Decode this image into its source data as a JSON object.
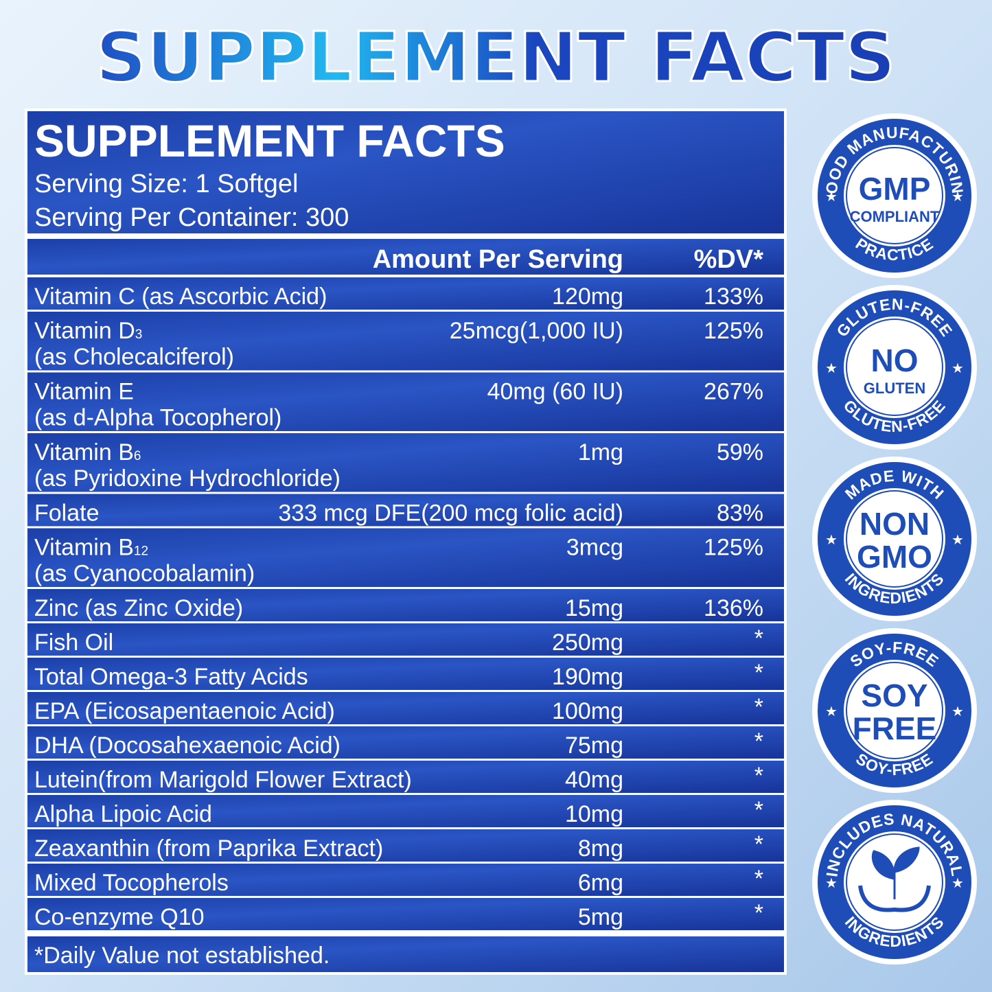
{
  "title": "SUPPLEMENT FACTS",
  "panel": {
    "heading": "SUPPLEMENT FACTS",
    "serving_size": "Serving Size: 1 Softgel",
    "servings_per_container": "Serving Per Container: 300",
    "header": {
      "amount": "Amount Per Serving",
      "dv": "%DV*"
    },
    "rows": [
      {
        "name": "Vitamin C (as Ascorbic Acid)",
        "amount": "120mg",
        "dv": "133%"
      },
      {
        "name": "Vitamin D",
        "subscript": "3",
        "detail": "(as Cholecalciferol)",
        "amount": "25mcg(1,000 IU)",
        "dv": "125%"
      },
      {
        "name": "Vitamin E",
        "detail": "(as d-Alpha Tocopherol)",
        "amount": "40mg (60 IU)",
        "dv": "267%"
      },
      {
        "name": "Vitamin B",
        "subscript": "6",
        "detail": "(as Pyridoxine Hydrochloride)",
        "amount": "1mg",
        "dv": "59%"
      },
      {
        "name": "Folate",
        "amount": "333 mcg DFE(200 mcg folic acid)",
        "dv": "83%"
      },
      {
        "name": "Vitamin B",
        "subscript": "12",
        "detail": "(as Cyanocobalamin)",
        "amount": "3mcg",
        "dv": "125%"
      },
      {
        "name": "Zinc (as Zinc Oxide)",
        "amount": "15mg",
        "dv": "136%"
      },
      {
        "name": "Fish Oil",
        "amount": "250mg",
        "dv": "*"
      },
      {
        "name": "Total Omega-3 Fatty Acids",
        "amount": "190mg",
        "dv": "*"
      },
      {
        "name": "EPA (Eicosapentaenoic Acid)",
        "amount": "100mg",
        "dv": "*"
      },
      {
        "name": "DHA (Docosahexaenoic Acid)",
        "amount": "75mg",
        "dv": "*"
      },
      {
        "name": "Lutein(from Marigold Flower Extract)",
        "amount": "40mg",
        "dv": "*"
      },
      {
        "name": "Alpha Lipoic Acid",
        "amount": "10mg",
        "dv": "*"
      },
      {
        "name": "Zeaxanthin (from Paprika Extract)",
        "amount": "8mg",
        "dv": "*"
      },
      {
        "name": "Mixed Tocopherols",
        "amount": "6mg",
        "dv": "*"
      },
      {
        "name": "Co-enzyme Q10",
        "amount": "5mg",
        "dv": "*"
      }
    ],
    "footnote": "*Daily Value not established."
  },
  "badges": [
    {
      "top": "GOOD MANUFACTURING",
      "center": [
        "GMP",
        "COMPLIANT"
      ],
      "bottom": "PRACTICE"
    },
    {
      "top": "GLUTEN-FREE",
      "center": [
        "NO",
        "GLUTEN"
      ],
      "bottom": "GLUTEN-FREE"
    },
    {
      "top": "MADE WITH",
      "center": [
        "NON",
        "GMO"
      ],
      "bottom": "INGREDIENTS"
    },
    {
      "top": "SOY-FREE",
      "center": [
        "SOY",
        "FREE"
      ],
      "bottom": "SOY-FREE"
    },
    {
      "top": "INCLUDES NATURAL",
      "bottom": "INGREDIENTS"
    }
  ]
}
